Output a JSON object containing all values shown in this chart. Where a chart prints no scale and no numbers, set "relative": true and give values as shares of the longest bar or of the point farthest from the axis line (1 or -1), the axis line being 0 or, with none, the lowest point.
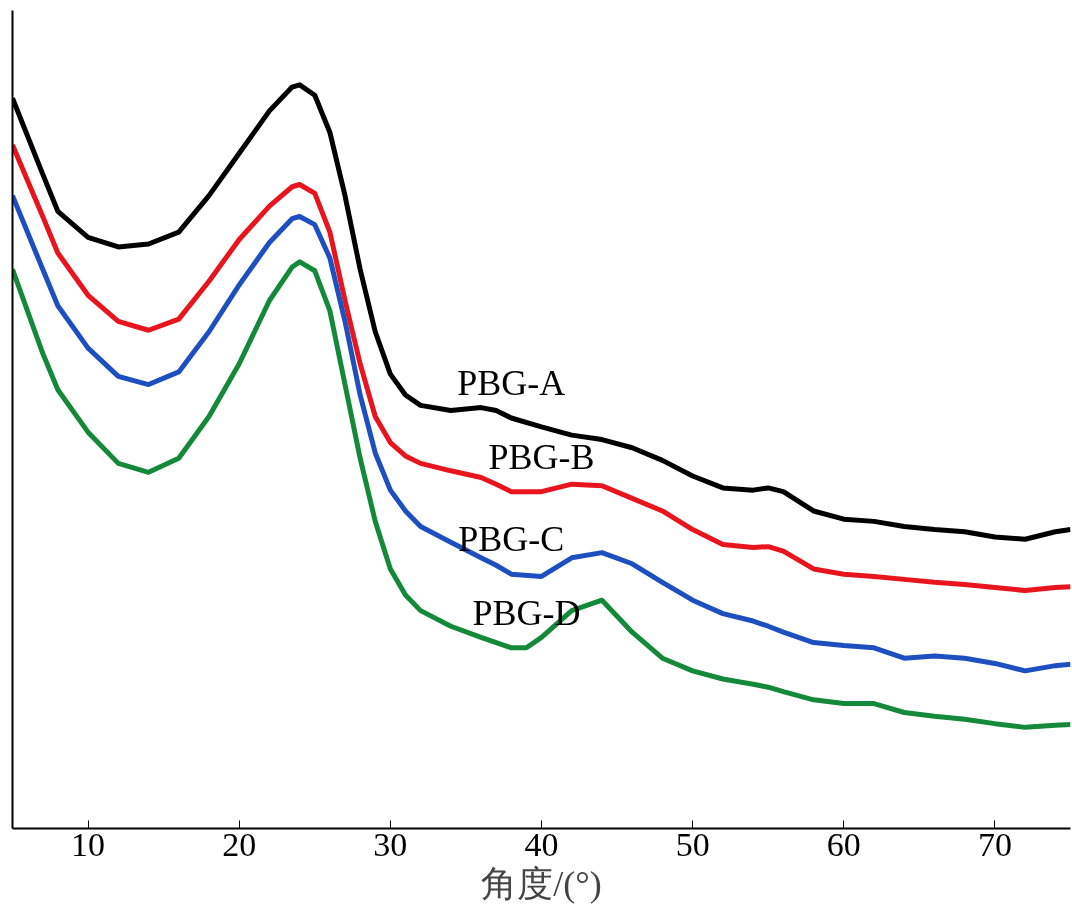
{
  "chart_data": {
    "type": "line",
    "relative": true,
    "xlabel": "角度/(°)",
    "xlim": [
      5,
      75
    ],
    "xticks": [
      10,
      20,
      30,
      40,
      50,
      60,
      70
    ],
    "tick_labels": "x",
    "grid": false,
    "marker": "none",
    "line_style": "solid",
    "x": [
      5,
      7,
      8,
      10,
      12,
      14,
      16,
      18,
      20,
      22,
      23.5,
      24,
      25,
      26,
      27,
      28,
      29,
      30,
      31,
      32,
      34,
      36,
      37,
      38,
      40,
      42,
      44,
      46,
      48,
      50,
      52,
      54,
      55,
      56,
      58,
      60,
      62,
      64,
      66,
      68,
      70,
      72,
      74,
      75
    ],
    "series": [
      {
        "name": "PBG-A",
        "color": "#000000",
        "values": [
          0.982,
          0.88,
          0.83,
          0.795,
          0.782,
          0.786,
          0.802,
          0.851,
          0.908,
          0.965,
          0.997,
          1.0,
          0.986,
          0.936,
          0.851,
          0.752,
          0.668,
          0.611,
          0.583,
          0.569,
          0.562,
          0.566,
          0.562,
          0.552,
          0.54,
          0.529,
          0.523,
          0.512,
          0.495,
          0.474,
          0.458,
          0.455,
          0.458,
          0.453,
          0.427,
          0.416,
          0.413,
          0.406,
          0.402,
          0.399,
          0.392,
          0.389,
          0.399,
          0.402
        ]
      },
      {
        "name": "PBG-B",
        "color": "#e8141e",
        "values": [
          0.919,
          0.823,
          0.774,
          0.717,
          0.682,
          0.67,
          0.685,
          0.736,
          0.792,
          0.837,
          0.863,
          0.866,
          0.854,
          0.802,
          0.71,
          0.625,
          0.554,
          0.519,
          0.501,
          0.491,
          0.481,
          0.472,
          0.463,
          0.453,
          0.453,
          0.463,
          0.461,
          0.444,
          0.427,
          0.402,
          0.382,
          0.378,
          0.379,
          0.373,
          0.349,
          0.342,
          0.339,
          0.335,
          0.331,
          0.328,
          0.324,
          0.32,
          0.324,
          0.325
        ]
      },
      {
        "name": "PBG-C",
        "color": "#1e4fc0",
        "values": [
          0.851,
          0.752,
          0.703,
          0.646,
          0.608,
          0.597,
          0.614,
          0.668,
          0.731,
          0.788,
          0.82,
          0.823,
          0.812,
          0.767,
          0.682,
          0.583,
          0.505,
          0.455,
          0.427,
          0.406,
          0.385,
          0.364,
          0.354,
          0.342,
          0.339,
          0.364,
          0.371,
          0.356,
          0.331,
          0.307,
          0.289,
          0.279,
          0.272,
          0.264,
          0.25,
          0.246,
          0.243,
          0.229,
          0.232,
          0.229,
          0.222,
          0.212,
          0.219,
          0.221
        ]
      },
      {
        "name": "PBG-D",
        "color": "#15893a",
        "x": [
          5,
          7,
          8,
          10,
          12,
          14,
          16,
          18,
          20,
          22,
          23.5,
          24,
          25,
          26,
          27,
          28,
          29,
          30,
          31,
          32,
          34,
          36,
          37,
          38,
          39,
          40,
          42,
          44,
          46,
          48,
          50,
          52,
          54,
          55,
          56,
          58,
          60,
          62,
          64,
          66,
          68,
          70,
          72,
          74,
          75
        ],
        "values": [
          0.752,
          0.639,
          0.59,
          0.533,
          0.491,
          0.479,
          0.498,
          0.554,
          0.625,
          0.71,
          0.755,
          0.762,
          0.75,
          0.696,
          0.597,
          0.498,
          0.413,
          0.349,
          0.314,
          0.293,
          0.272,
          0.257,
          0.25,
          0.243,
          0.243,
          0.257,
          0.293,
          0.307,
          0.264,
          0.229,
          0.212,
          0.201,
          0.194,
          0.19,
          0.184,
          0.173,
          0.168,
          0.168,
          0.156,
          0.151,
          0.147,
          0.141,
          0.136,
          0.139,
          0.14
        ]
      }
    ]
  }
}
